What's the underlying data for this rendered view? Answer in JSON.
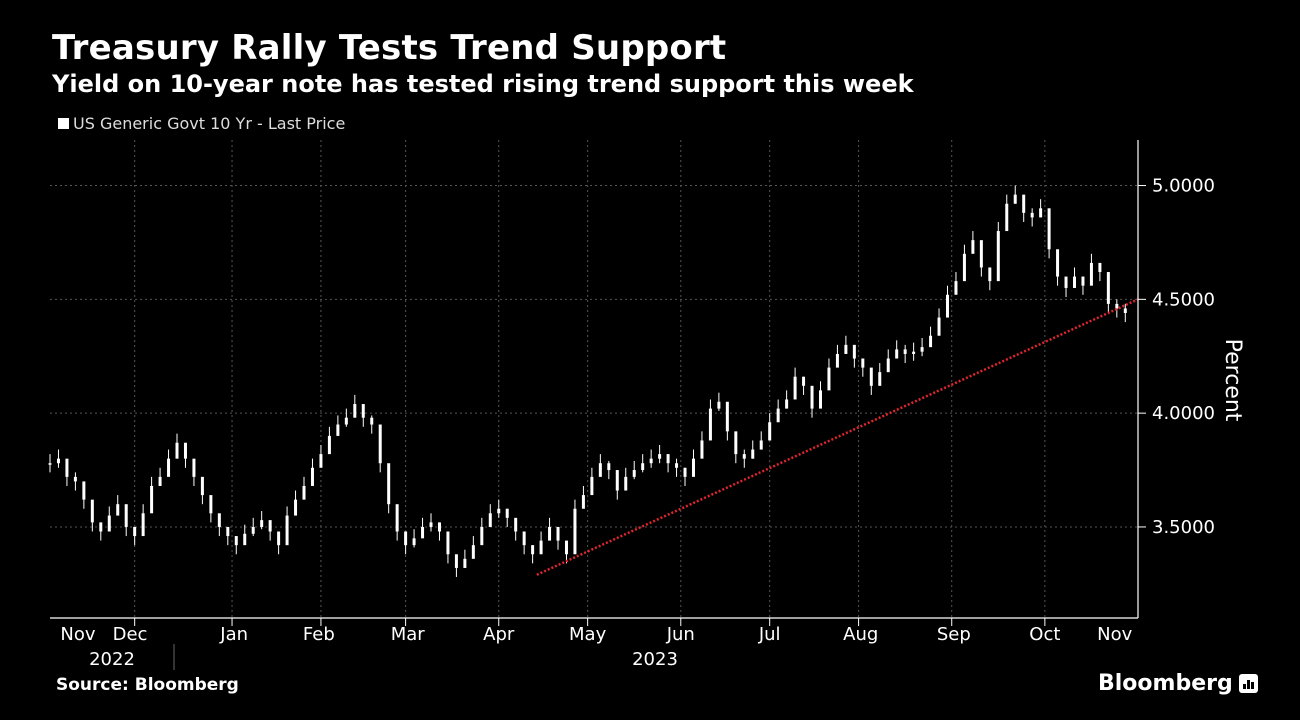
{
  "chart_data": {
    "type": "candlestick",
    "title": "Treasury Rally Tests Trend Support",
    "subtitle": "Yield on 10-year note has tested rising trend support this week",
    "legend": [
      "US Generic Govt 10 Yr - Last Price"
    ],
    "ylabel": "Percent",
    "ylim": [
      3.1,
      5.2
    ],
    "yticks": [
      3.5,
      4.0,
      4.5,
      5.0
    ],
    "ytick_labels": [
      "3.5000",
      "4.0000",
      "4.5000",
      "5.0000"
    ],
    "month_labels": [
      "Nov",
      "Dec",
      "Jan",
      "Feb",
      "Mar",
      "Apr",
      "May",
      "Jun",
      "Jul",
      "Aug",
      "Sep",
      "Oct",
      "Nov"
    ],
    "year_labels": [
      "2022",
      "2023"
    ],
    "x_domain": [
      0,
      257
    ],
    "x": [
      0,
      2,
      4,
      6,
      8,
      10,
      12,
      14,
      16,
      18,
      20,
      22,
      24,
      26,
      28,
      30,
      32,
      34,
      36,
      38,
      40,
      42,
      44,
      46,
      48,
      50,
      52,
      54,
      56,
      58,
      60,
      62,
      64,
      66,
      68,
      70,
      72,
      74,
      76,
      78,
      80,
      82,
      84,
      86,
      88,
      90,
      92,
      94,
      96,
      98,
      100,
      102,
      104,
      106,
      108,
      110,
      112,
      114,
      116,
      118,
      120,
      122,
      124,
      126,
      128,
      130,
      132,
      134,
      136,
      138,
      140,
      142,
      144,
      146,
      148,
      150,
      152,
      154,
      156,
      158,
      160,
      162,
      164,
      166,
      168,
      170,
      172,
      174,
      176,
      178,
      180,
      182,
      184,
      186,
      188,
      190,
      192,
      194,
      196,
      198,
      200,
      202,
      204,
      206,
      208,
      210,
      212,
      214,
      216,
      218,
      220,
      222,
      224,
      226,
      228,
      230,
      232,
      234,
      236,
      238,
      240,
      242,
      244,
      246,
      248,
      250,
      252,
      254
    ],
    "values": [
      3.78,
      3.8,
      3.72,
      3.7,
      3.62,
      3.52,
      3.48,
      3.55,
      3.6,
      3.5,
      3.46,
      3.56,
      3.68,
      3.72,
      3.8,
      3.87,
      3.8,
      3.72,
      3.64,
      3.56,
      3.5,
      3.46,
      3.42,
      3.47,
      3.5,
      3.53,
      3.48,
      3.42,
      3.55,
      3.62,
      3.68,
      3.76,
      3.82,
      3.9,
      3.95,
      3.98,
      4.04,
      3.98,
      3.95,
      3.78,
      3.6,
      3.48,
      3.42,
      3.45,
      3.5,
      3.52,
      3.48,
      3.38,
      3.32,
      3.36,
      3.42,
      3.5,
      3.56,
      3.58,
      3.54,
      3.48,
      3.42,
      3.38,
      3.44,
      3.5,
      3.44,
      3.38,
      3.58,
      3.64,
      3.72,
      3.78,
      3.75,
      3.66,
      3.72,
      3.75,
      3.78,
      3.8,
      3.82,
      3.78,
      3.76,
      3.72,
      3.8,
      3.88,
      4.02,
      4.05,
      3.92,
      3.82,
      3.8,
      3.84,
      3.88,
      3.96,
      4.02,
      4.06,
      4.16,
      4.12,
      4.02,
      4.1,
      4.2,
      4.26,
      4.3,
      4.24,
      4.2,
      4.12,
      4.18,
      4.24,
      4.28,
      4.26,
      4.27,
      4.29,
      4.34,
      4.42,
      4.52,
      4.58,
      4.7,
      4.76,
      4.64,
      4.58,
      4.8,
      4.92,
      4.96,
      4.88,
      4.86,
      4.9,
      4.72,
      4.6,
      4.55,
      4.6,
      4.56,
      4.66,
      4.62,
      4.48,
      4.46,
      4.44
    ],
    "highs": [
      3.82,
      3.84,
      3.76,
      3.74,
      3.66,
      3.56,
      3.52,
      3.59,
      3.64,
      3.54,
      3.5,
      3.6,
      3.72,
      3.76,
      3.84,
      3.91,
      3.84,
      3.76,
      3.68,
      3.6,
      3.54,
      3.5,
      3.46,
      3.51,
      3.54,
      3.57,
      3.52,
      3.46,
      3.59,
      3.66,
      3.72,
      3.8,
      3.86,
      3.94,
      3.99,
      4.02,
      4.08,
      4.02,
      3.99,
      3.82,
      3.64,
      3.52,
      3.46,
      3.49,
      3.54,
      3.56,
      3.52,
      3.42,
      3.36,
      3.4,
      3.46,
      3.54,
      3.6,
      3.62,
      3.58,
      3.52,
      3.46,
      3.42,
      3.48,
      3.54,
      3.48,
      3.42,
      3.62,
      3.68,
      3.76,
      3.82,
      3.79,
      3.7,
      3.76,
      3.79,
      3.82,
      3.84,
      3.86,
      3.82,
      3.8,
      3.76,
      3.84,
      3.92,
      4.06,
      4.09,
      3.96,
      3.86,
      3.84,
      3.88,
      3.92,
      4.0,
      4.06,
      4.1,
      4.2,
      4.16,
      4.06,
      4.14,
      4.24,
      4.3,
      4.34,
      4.28,
      4.24,
      4.16,
      4.22,
      4.28,
      4.32,
      4.3,
      4.31,
      4.33,
      4.38,
      4.46,
      4.56,
      4.62,
      4.74,
      4.8,
      4.68,
      4.62,
      4.84,
      4.96,
      5.0,
      4.92,
      4.9,
      4.94,
      4.76,
      4.64,
      4.59,
      4.64,
      4.6,
      4.7,
      4.66,
      4.52,
      4.5,
      4.48
    ],
    "lows": [
      3.74,
      3.76,
      3.68,
      3.66,
      3.58,
      3.48,
      3.44,
      3.51,
      3.56,
      3.46,
      3.42,
      3.52,
      3.64,
      3.68,
      3.76,
      3.83,
      3.76,
      3.68,
      3.6,
      3.52,
      3.46,
      3.42,
      3.38,
      3.43,
      3.46,
      3.49,
      3.44,
      3.38,
      3.51,
      3.58,
      3.64,
      3.72,
      3.78,
      3.86,
      3.91,
      3.94,
      4.0,
      3.94,
      3.91,
      3.74,
      3.56,
      3.44,
      3.38,
      3.41,
      3.46,
      3.48,
      3.44,
      3.34,
      3.28,
      3.32,
      3.38,
      3.46,
      3.52,
      3.54,
      3.5,
      3.44,
      3.38,
      3.34,
      3.4,
      3.46,
      3.4,
      3.34,
      3.54,
      3.6,
      3.68,
      3.74,
      3.71,
      3.62,
      3.68,
      3.71,
      3.74,
      3.76,
      3.78,
      3.74,
      3.72,
      3.68,
      3.76,
      3.84,
      3.98,
      4.01,
      3.88,
      3.78,
      3.76,
      3.8,
      3.84,
      3.92,
      3.98,
      4.02,
      4.12,
      4.08,
      3.98,
      4.06,
      4.16,
      4.22,
      4.26,
      4.2,
      4.16,
      4.08,
      4.14,
      4.2,
      4.24,
      4.22,
      4.23,
      4.25,
      4.3,
      4.38,
      4.48,
      4.54,
      4.66,
      4.72,
      4.6,
      4.54,
      4.76,
      4.88,
      4.92,
      4.84,
      4.82,
      4.86,
      4.68,
      4.56,
      4.51,
      4.56,
      4.52,
      4.62,
      4.58,
      4.44,
      4.42,
      4.4
    ],
    "trendline": {
      "x": [
        115,
        257
      ],
      "y": [
        3.29,
        4.5
      ],
      "color": "#e0262c",
      "style": "dotted"
    },
    "colors": {
      "background": "#000000",
      "candle": "#ffffff",
      "grid": "#555555",
      "trend": "#e0262c"
    }
  },
  "source": "Source: Bloomberg",
  "brand": "Bloomberg"
}
